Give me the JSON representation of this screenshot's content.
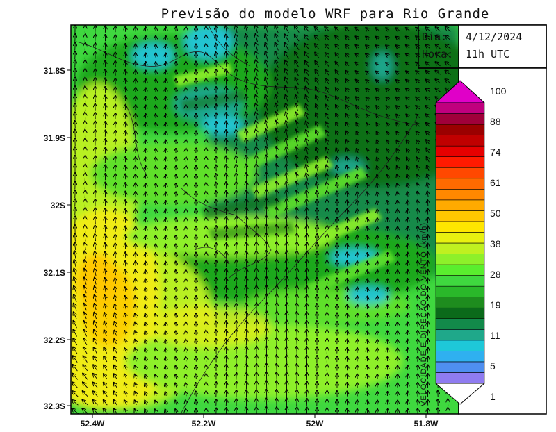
{
  "title": "Previsão do modelo WRF para Rio Grande",
  "info": {
    "day_label": "Dia:",
    "day_value": "4/12/2024",
    "hour_label": "Hora:",
    "hour_value": "11h UTC"
  },
  "axes": {
    "lat_ticks": [
      "31.8S",
      "31.9S",
      "32S",
      "32.1S",
      "32.2S",
      "32.3S"
    ],
    "lon_ticks": [
      "52.4W",
      "52.2W",
      "52W",
      "51.8W"
    ]
  },
  "colorbar": {
    "label": "VELOCIDADE E DIREÇÃO DO VENTO (km/h)",
    "labels": [
      "100",
      "88",
      "74",
      "61",
      "50",
      "38",
      "28",
      "19",
      "11",
      "5",
      "1"
    ],
    "colors": [
      "#7b5fe0",
      "#8f7cf0",
      "#4f8ff0",
      "#2fb0f0",
      "#1ec8d8",
      "#1fa88a",
      "#128a4a",
      "#0b6a1a",
      "#1e8c1e",
      "#2ab82a",
      "#3fd83f",
      "#5aee2e",
      "#8ef02a",
      "#c0f020",
      "#e8f010",
      "#ffe600",
      "#ffc800",
      "#ffaa00",
      "#ff8800",
      "#ff6a00",
      "#ff4800",
      "#ff1a00",
      "#e60000",
      "#c00000",
      "#9a0000",
      "#a0003a",
      "#c0007e",
      "#e000c8"
    ]
  },
  "colors": {
    "deep_green": "#0e6f18",
    "green": "#1ea81e",
    "light_green": "#5fe02a",
    "yellow_green": "#b8f020",
    "yellow": "#f0ec18",
    "orange_yellow": "#ffc800",
    "orange": "#ff9a10",
    "teal": "#1aa58a",
    "cyan": "#24c4d0",
    "blue": "#3a9cf0"
  }
}
